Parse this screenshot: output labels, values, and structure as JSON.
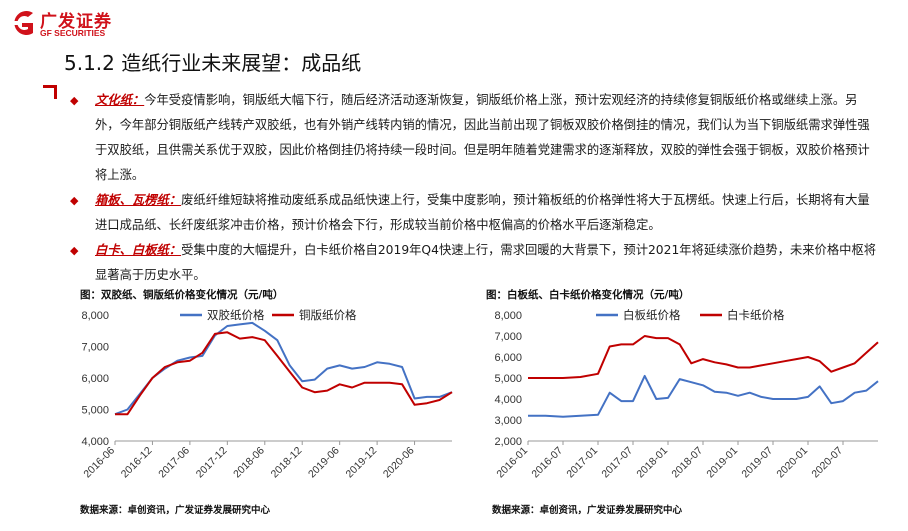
{
  "header": {
    "logo_cn": "广发证券",
    "logo_en": "GF SECURITIES",
    "brand_color": "#d0121b"
  },
  "page_title": "5.1.2 造纸行业未来展望：成品纸",
  "bullets": [
    {
      "keyword": "文化纸：",
      "text": "今年受疫情影响，铜版纸大幅下行，随后经济活动逐渐恢复，铜版纸价格上涨，预计宏观经济的持续修复铜版纸价格或继续上涨。另外，今年部分铜版纸产线转产双胶纸，也有外销产线转内销的情况，因此当前出现了铜板双胶价格倒挂的情况，我们认为当下铜版纸需求弹性强于双胶纸，且供需关系优于双胶，因此价格倒挂仍将持续一段时间。但是明年随着党建需求的逐渐释放，双胶的弹性会强于铜板，双胶价格预计将上涨。"
    },
    {
      "keyword": "箱板、瓦楞纸：",
      "text": "废纸纤维短缺将推动废纸系成品纸快速上行，受集中度影响，预计箱板纸的价格弹性将大于瓦楞纸。快速上行后，长期将有大量进口成品纸、长纤废纸浆冲击价格，预计价格会下行，形成较当前价格中枢偏高的价格水平后逐渐稳定。"
    },
    {
      "keyword": "白卡、白板纸：",
      "text": "受集中度的大幅提升，白卡纸价格自2019年Q4快速上行，需求回暖的大背景下，预计2021年将延续涨价趋势，未来价格中枢将显著高于历史水平。"
    }
  ],
  "chart_left_title": "图：双胶纸、铜版纸价格变化情况（元/吨）",
  "chart_right_title": "图：白板纸、白卡纸价格变化情况（元/吨）",
  "chart_left_source": "数据来源：卓创资讯，广发证券发展研究中心",
  "chart_right_source": "数据来源：卓创资讯，广发证券发展研究中心",
  "chart_data": [
    {
      "type": "line",
      "title": "图：双胶纸、铜版纸价格变化情况（元/吨）",
      "ylim": [
        4000,
        8000
      ],
      "yticks": [
        "4,000",
        "5,000",
        "6,000",
        "7,000",
        "8,000"
      ],
      "xticks": [
        "2016-06",
        "2016-12",
        "2017-06",
        "2017-12",
        "2018-06",
        "2018-12",
        "2019-06",
        "2019-12",
        "2020-06"
      ],
      "x_start": "2016-06",
      "legend_position": "top",
      "grid": false,
      "series": [
        {
          "name": "双胶纸价格",
          "color": "#4472c4",
          "x": [
            "2016-06",
            "2016-08",
            "2016-10",
            "2016-12",
            "2017-02",
            "2017-04",
            "2017-06",
            "2017-08",
            "2017-10",
            "2017-12",
            "2018-02",
            "2018-04",
            "2018-06",
            "2018-08",
            "2018-10",
            "2018-12",
            "2019-02",
            "2019-04",
            "2019-06",
            "2019-08",
            "2019-10",
            "2019-12",
            "2020-02",
            "2020-04",
            "2020-06",
            "2020-08",
            "2020-10",
            "2020-12"
          ],
          "values": [
            4850,
            5000,
            5500,
            6000,
            6300,
            6550,
            6650,
            6700,
            7350,
            7650,
            7700,
            7750,
            7500,
            7200,
            6400,
            5900,
            5950,
            6300,
            6400,
            6300,
            6350,
            6500,
            6450,
            6350,
            5350,
            5400,
            5400,
            5550
          ]
        },
        {
          "name": "铜版纸价格",
          "color": "#c00000",
          "x": [
            "2016-06",
            "2016-08",
            "2016-10",
            "2016-12",
            "2017-02",
            "2017-04",
            "2017-06",
            "2017-08",
            "2017-10",
            "2017-12",
            "2018-02",
            "2018-04",
            "2018-06",
            "2018-08",
            "2018-10",
            "2018-12",
            "2019-02",
            "2019-04",
            "2019-06",
            "2019-08",
            "2019-10",
            "2019-12",
            "2020-02",
            "2020-04",
            "2020-06",
            "2020-08",
            "2020-10",
            "2020-12"
          ],
          "values": [
            4850,
            4850,
            5450,
            6000,
            6350,
            6500,
            6550,
            6800,
            7400,
            7450,
            7250,
            7300,
            7200,
            6700,
            6200,
            5700,
            5550,
            5600,
            5800,
            5700,
            5850,
            5850,
            5850,
            5800,
            5150,
            5200,
            5300,
            5550
          ]
        }
      ]
    },
    {
      "type": "line",
      "title": "图：白板纸、白卡纸价格变化情况（元/吨）",
      "ylim": [
        2000,
        8000
      ],
      "yticks": [
        "2,000",
        "3,000",
        "4,000",
        "5,000",
        "6,000",
        "7,000",
        "8,000"
      ],
      "xticks": [
        "2016-01",
        "2016-07",
        "2017-01",
        "2017-07",
        "2018-01",
        "2018-07",
        "2019-01",
        "2019-07",
        "2020-01",
        "2020-07"
      ],
      "x_start": "2016-01",
      "legend_position": "top",
      "grid": false,
      "series": [
        {
          "name": "白板纸价格",
          "color": "#4472c4",
          "x": [
            "2016-01",
            "2016-04",
            "2016-07",
            "2016-10",
            "2017-01",
            "2017-03",
            "2017-05",
            "2017-07",
            "2017-09",
            "2017-11",
            "2018-01",
            "2018-03",
            "2018-05",
            "2018-07",
            "2018-09",
            "2018-11",
            "2019-01",
            "2019-03",
            "2019-05",
            "2019-07",
            "2019-09",
            "2019-11",
            "2020-01",
            "2020-03",
            "2020-05",
            "2020-07",
            "2020-09",
            "2020-11",
            "2021-01"
          ],
          "values": [
            3200,
            3200,
            3150,
            3200,
            3250,
            4300,
            3900,
            3900,
            5100,
            4000,
            4050,
            4950,
            4800,
            4650,
            4350,
            4300,
            4150,
            4300,
            4100,
            4000,
            4000,
            4000,
            4100,
            4600,
            3800,
            3900,
            4300,
            4400,
            4850
          ]
        },
        {
          "name": "白卡纸价格",
          "color": "#c00000",
          "x": [
            "2016-01",
            "2016-04",
            "2016-07",
            "2016-10",
            "2017-01",
            "2017-03",
            "2017-05",
            "2017-07",
            "2017-09",
            "2017-11",
            "2018-01",
            "2018-03",
            "2018-05",
            "2018-07",
            "2018-09",
            "2018-11",
            "2019-01",
            "2019-03",
            "2019-05",
            "2019-07",
            "2019-09",
            "2019-11",
            "2020-01",
            "2020-03",
            "2020-05",
            "2020-07",
            "2020-09",
            "2020-11",
            "2021-01"
          ],
          "values": [
            5000,
            5000,
            5000,
            5050,
            5200,
            6500,
            6600,
            6600,
            7000,
            6900,
            6900,
            6600,
            5700,
            5900,
            5750,
            5650,
            5500,
            5500,
            5600,
            5700,
            5800,
            5900,
            6000,
            5800,
            5300,
            5500,
            5700,
            6200,
            6700
          ]
        }
      ]
    }
  ]
}
